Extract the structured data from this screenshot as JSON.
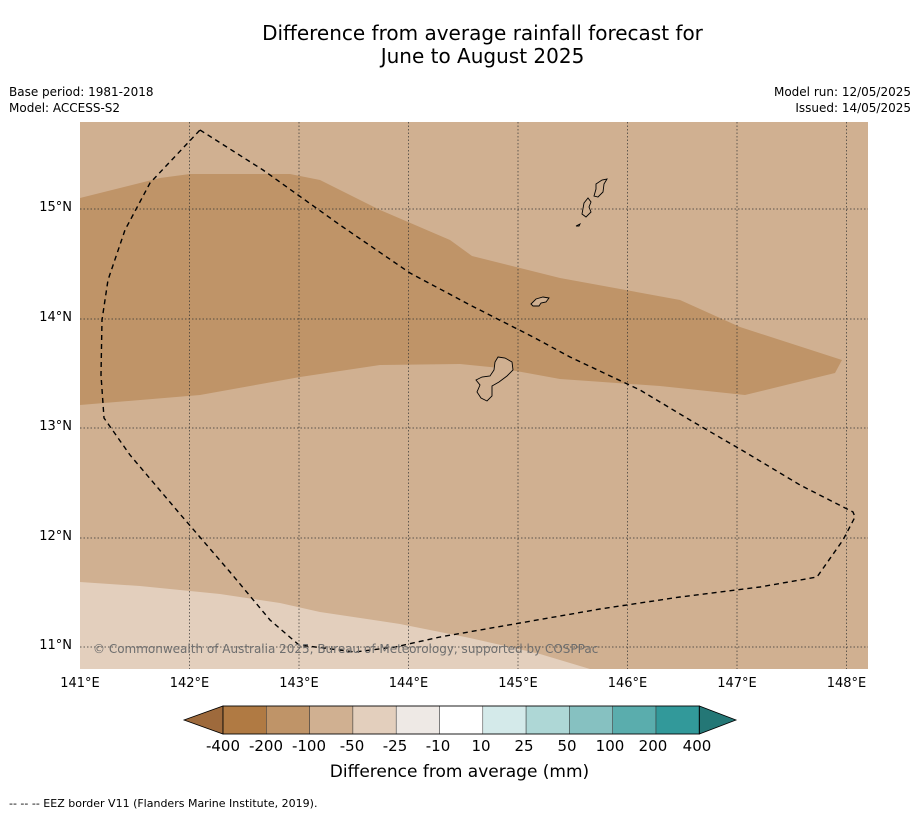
{
  "title": {
    "line1": "Difference from average rainfall forecast for",
    "line2": "June to August 2025"
  },
  "meta": {
    "base_period": "Base period: 1981-2018",
    "model": "Model: ACCESS-S2",
    "model_run": "Model run: 12/05/2025",
    "issued": "Issued: 14/05/2025"
  },
  "map": {
    "lat_labels": [
      "15°N",
      "14°N",
      "13°N",
      "12°N",
      "11°N"
    ],
    "lon_labels": [
      "141°E",
      "142°E",
      "143°E",
      "144°E",
      "145°E",
      "146°E",
      "147°E",
      "148°E"
    ],
    "copyright": "© Commonwealth of Australia 2025, Bureau of Meteorology, supported by COSPPac",
    "colors": {
      "below_50_to_100": "#d0b091",
      "below_100_to_200": "#bf9468",
      "below_25_to_50": "#e3cfbd"
    }
  },
  "colorbar": {
    "title": "Difference from average (mm)",
    "tick_labels": [
      "-400",
      "-200",
      "-100",
      "-50",
      "-25",
      "-10",
      "10",
      "25",
      "50",
      "100",
      "200",
      "400"
    ],
    "colors": [
      "#9e6a3c",
      "#b07a43",
      "#bf9468",
      "#d0b091",
      "#e3cfbd",
      "#eee9e5",
      "#ffffff",
      "#d4eaea",
      "#aed7d6",
      "#86c1c1",
      "#5aadad",
      "#32999a",
      "#247776"
    ]
  },
  "footnote": "--  --  -- EEZ border V11 (Flanders Marine Institute, 2019)."
}
